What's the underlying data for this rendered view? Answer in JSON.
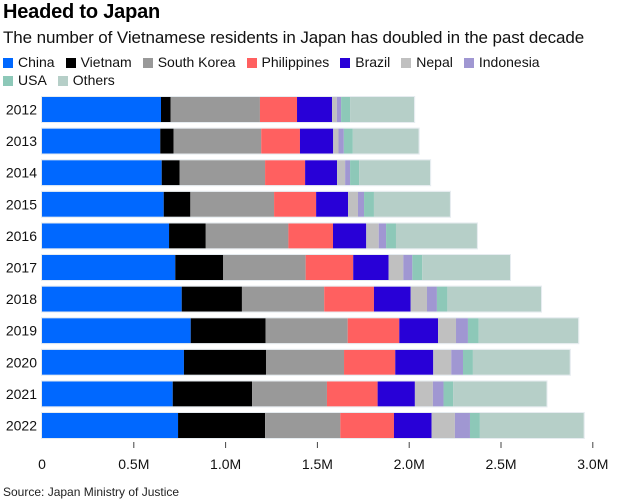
{
  "chart_data": {
    "type": "bar",
    "orientation": "horizontal",
    "stacked": true,
    "title": "Headed to Japan",
    "subtitle": "The number of Vietnamese residents in Japan has doubled in the past decade",
    "source": "Source: Japan Ministry of Justice",
    "xlabel": "",
    "ylabel": "",
    "xlim": [
      0,
      3.0
    ],
    "x_unit": "millions",
    "x_ticks": [
      0,
      0.5,
      1.0,
      1.5,
      2.0,
      2.5,
      3.0
    ],
    "x_tick_labels": [
      "0",
      "0.5M",
      "1.0M",
      "1.5M",
      "2.0M",
      "2.5M",
      "3.0M"
    ],
    "grid": false,
    "legend_position": "top",
    "categories": [
      "2012",
      "2013",
      "2014",
      "2015",
      "2016",
      "2017",
      "2018",
      "2019",
      "2020",
      "2021",
      "2022"
    ],
    "series": [
      {
        "name": "China",
        "color": "#0068FF",
        "values": [
          0.648,
          0.644,
          0.652,
          0.663,
          0.692,
          0.726,
          0.761,
          0.81,
          0.773,
          0.712,
          0.741
        ]
      },
      {
        "name": "Vietnam",
        "color": "#000000",
        "values": [
          0.053,
          0.073,
          0.098,
          0.145,
          0.2,
          0.261,
          0.328,
          0.408,
          0.447,
          0.432,
          0.474
        ]
      },
      {
        "name": "South Korea",
        "color": "#999999",
        "values": [
          0.486,
          0.477,
          0.465,
          0.456,
          0.45,
          0.449,
          0.448,
          0.447,
          0.425,
          0.408,
          0.41
        ]
      },
      {
        "name": "Philippines",
        "color": "#FF6060",
        "values": [
          0.202,
          0.211,
          0.218,
          0.229,
          0.243,
          0.259,
          0.271,
          0.281,
          0.279,
          0.276,
          0.292
        ]
      },
      {
        "name": "Brazil",
        "color": "#2800D7",
        "values": [
          0.191,
          0.181,
          0.174,
          0.174,
          0.181,
          0.193,
          0.2,
          0.211,
          0.207,
          0.203,
          0.205
        ]
      },
      {
        "name": "Nepal",
        "color": "#C0C0C0",
        "values": [
          0.026,
          0.029,
          0.044,
          0.054,
          0.068,
          0.08,
          0.089,
          0.098,
          0.098,
          0.098,
          0.127
        ]
      },
      {
        "name": "Indonesia",
        "color": "#A097D2",
        "values": [
          0.023,
          0.029,
          0.027,
          0.033,
          0.04,
          0.049,
          0.054,
          0.065,
          0.064,
          0.058,
          0.082
        ]
      },
      {
        "name": "USA",
        "color": "#8DC8B8",
        "values": [
          0.049,
          0.049,
          0.049,
          0.054,
          0.054,
          0.054,
          0.057,
          0.058,
          0.054,
          0.052,
          0.054
        ]
      },
      {
        "name": "Others",
        "color": "#B6CFC8",
        "values": [
          0.349,
          0.359,
          0.387,
          0.414,
          0.441,
          0.478,
          0.51,
          0.543,
          0.528,
          0.509,
          0.566
        ]
      }
    ]
  }
}
